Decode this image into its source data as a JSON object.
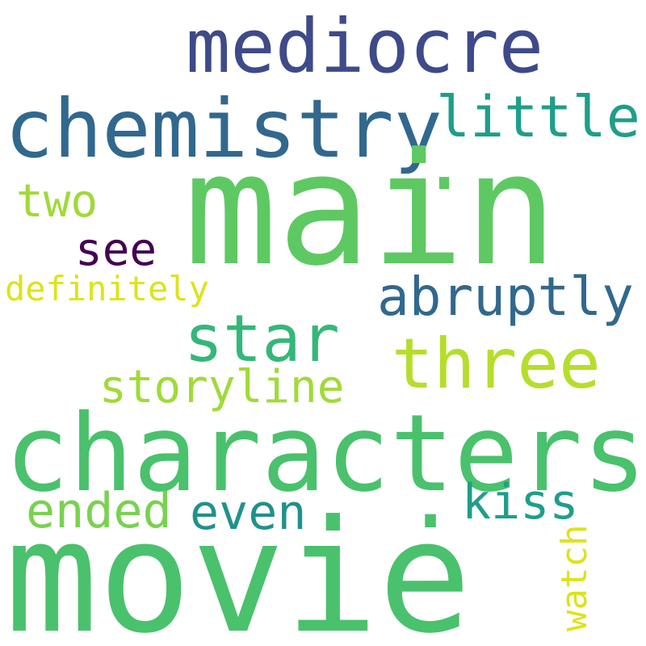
{
  "words": {
    "mediocre": "mediocre",
    "chemistry": "chemistry",
    "little": "little",
    "main": "main",
    "two": "two",
    "see": "see",
    "definitely": "definitely",
    "abruptly": "abruptly",
    "star": "star",
    "three": "three",
    "storyline": "storyline",
    "characters": "characters",
    "ended": "ended",
    "even": "even",
    "kiss": "kiss",
    "watch": "watch",
    "movie": "movie",
    "dot": "."
  },
  "colors": {
    "background": "#ffffff",
    "palette": [
      "#440154",
      "#3e4a89",
      "#31688e",
      "#21918c",
      "#1f9e89",
      "#35b779",
      "#4ac16d",
      "#5ec962",
      "#7ad151",
      "#a0da39",
      "#b5de2b",
      "#dde318"
    ]
  }
}
